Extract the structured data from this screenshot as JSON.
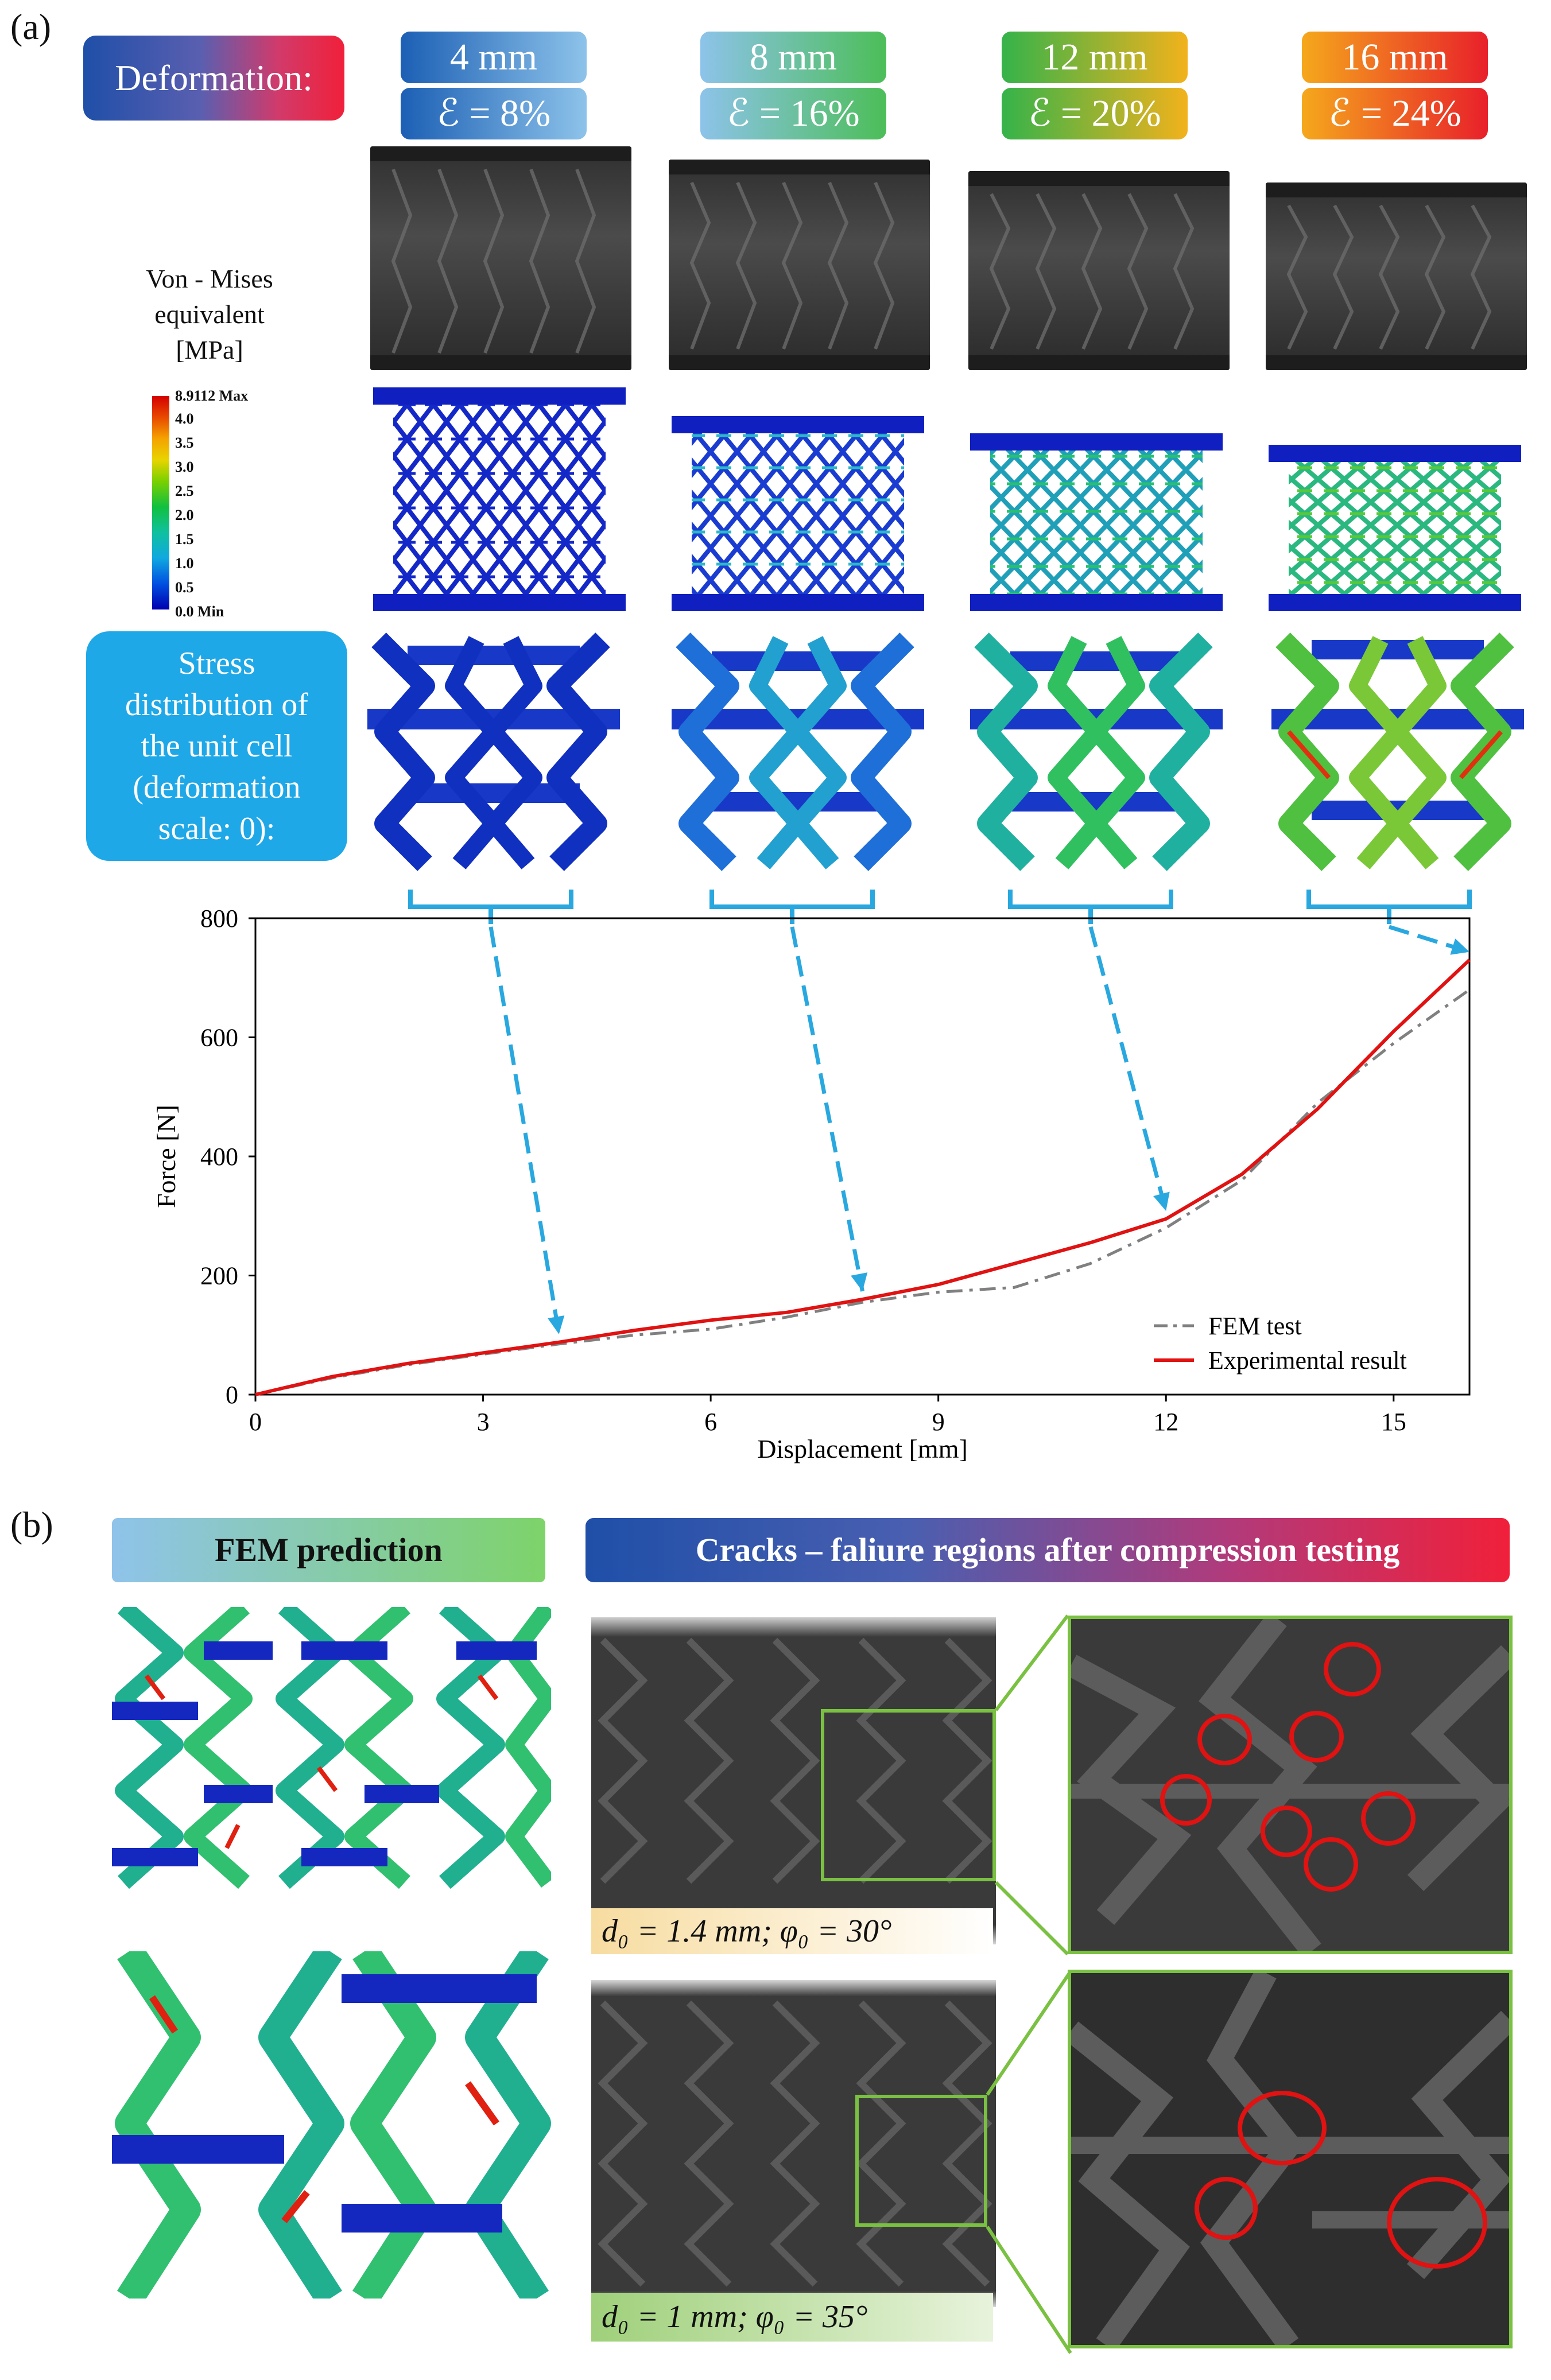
{
  "panel_a": {
    "letter": "(a)",
    "deformation_label": "Deformation:",
    "columns": [
      {
        "disp": "4 mm",
        "strain": "ℰ = 8%"
      },
      {
        "disp": "8 mm",
        "strain": "ℰ = 16%"
      },
      {
        "disp": "12 mm",
        "strain": "ℰ = 20%"
      },
      {
        "disp": "16 mm",
        "strain": "ℰ = 24%"
      }
    ],
    "legend": {
      "title_line1": "Von - Mises",
      "title_line2": "equivalent",
      "title_line3": "[MPa]",
      "ticks": [
        "8.9112 Max",
        "4.0",
        "3.5",
        "3.0",
        "2.5",
        "2.0",
        "1.5",
        "1.0",
        "0.5",
        "0.0 Min"
      ]
    },
    "unit_cell_label": {
      "line1": "Stress",
      "line2": "distribution of",
      "line3": "the unit cell",
      "line4": "(deformation",
      "line5": "scale: 0):"
    }
  },
  "chart_data": {
    "type": "line",
    "xlabel": "Displacement [mm]",
    "ylabel": "Force [N]",
    "xlim": [
      0,
      16
    ],
    "ylim": [
      0,
      800
    ],
    "xticks": [
      "0",
      "3",
      "6",
      "9",
      "12",
      "15"
    ],
    "yticks": [
      "0",
      "200",
      "400",
      "600",
      "800"
    ],
    "legend_position": "bottom-right",
    "series": [
      {
        "name": "FEM test",
        "style": "dash-dot",
        "color": "#808080",
        "x": [
          0,
          1,
          2,
          3,
          4,
          5,
          6,
          7,
          8,
          9,
          10,
          11,
          12,
          13,
          14,
          15,
          16
        ],
        "y": [
          0,
          28,
          50,
          68,
          85,
          100,
          110,
          130,
          155,
          172,
          180,
          220,
          280,
          360,
          490,
          590,
          680
        ]
      },
      {
        "name": "Experimental result",
        "style": "solid",
        "color": "#e01212",
        "x": [
          0,
          1,
          2,
          3,
          4,
          5,
          6,
          7,
          8,
          9,
          10,
          11,
          12,
          13,
          14,
          15,
          16
        ],
        "y": [
          0,
          30,
          52,
          70,
          88,
          108,
          125,
          138,
          160,
          185,
          220,
          255,
          295,
          370,
          480,
          610,
          730
        ]
      }
    ],
    "annotated_points": [
      {
        "x": 4,
        "y": 88
      },
      {
        "x": 8,
        "y": 160
      },
      {
        "x": 12,
        "y": 295
      },
      {
        "x": 16,
        "y": 730
      }
    ]
  },
  "panel_b": {
    "letter": "(b)",
    "fem_label": "FEM prediction",
    "cracks_label": "Cracks – faliure regions after compression testing",
    "caption_top": "d₀ = 1.4 mm; φ₀ = 30°",
    "caption_bottom": "d₀ = 1 mm; φ₀ = 35°"
  },
  "colors": {
    "light_blue_box": "#1fa8e8",
    "arrow": "#29a8e0",
    "crack_circle": "#e01212",
    "zoom_frame": "#7ac142"
  }
}
